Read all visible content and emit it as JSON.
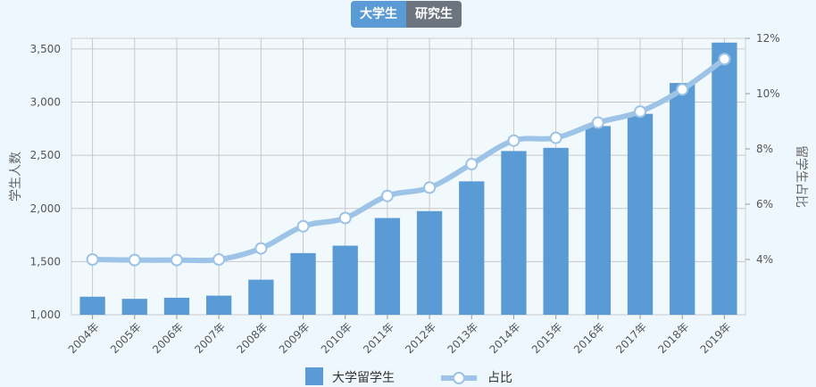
{
  "tabs": [
    {
      "label": "大学生",
      "active": true
    },
    {
      "label": "研究生",
      "active": false
    }
  ],
  "chart_data": {
    "type": "bar",
    "categories": [
      "2004年",
      "2005年",
      "2006年",
      "2007年",
      "2008年",
      "2009年",
      "2010年",
      "2011年",
      "2012年",
      "2013年",
      "2014年",
      "2015年",
      "2016年",
      "2017年",
      "2018年",
      "2019年"
    ],
    "series": [
      {
        "name": "大学留学生",
        "type": "bar",
        "axis": "left",
        "color": "#5b9bd5",
        "values": [
          1170,
          1150,
          1160,
          1180,
          1330,
          1580,
          1650,
          1910,
          1975,
          2255,
          2540,
          2570,
          2775,
          2890,
          3180,
          3560
        ]
      },
      {
        "name": "占比",
        "type": "line",
        "axis": "right",
        "color": "#9dc3e6",
        "values": [
          4.0,
          3.98,
          3.98,
          4.0,
          4.4,
          5.2,
          5.5,
          6.3,
          6.6,
          7.45,
          8.3,
          8.4,
          8.95,
          9.35,
          10.15,
          11.25
        ]
      }
    ],
    "ylabel": "学生人数",
    "ylabel_right": "留学生占比",
    "ylim": [
      1000,
      3600
    ],
    "yticks": [
      1000,
      1500,
      2000,
      2500,
      3000,
      3500
    ],
    "ytick_labels": [
      "1,000",
      "1,500",
      "2,000",
      "2,500",
      "3,000",
      "3,500"
    ],
    "y2lim": [
      2,
      12
    ],
    "y2ticks": [
      4,
      6,
      8,
      10,
      12
    ],
    "y2tick_labels": [
      "4%",
      "6%",
      "8%",
      "10%",
      "12%"
    ],
    "grid": true,
    "legend_position": "bottom-center"
  }
}
